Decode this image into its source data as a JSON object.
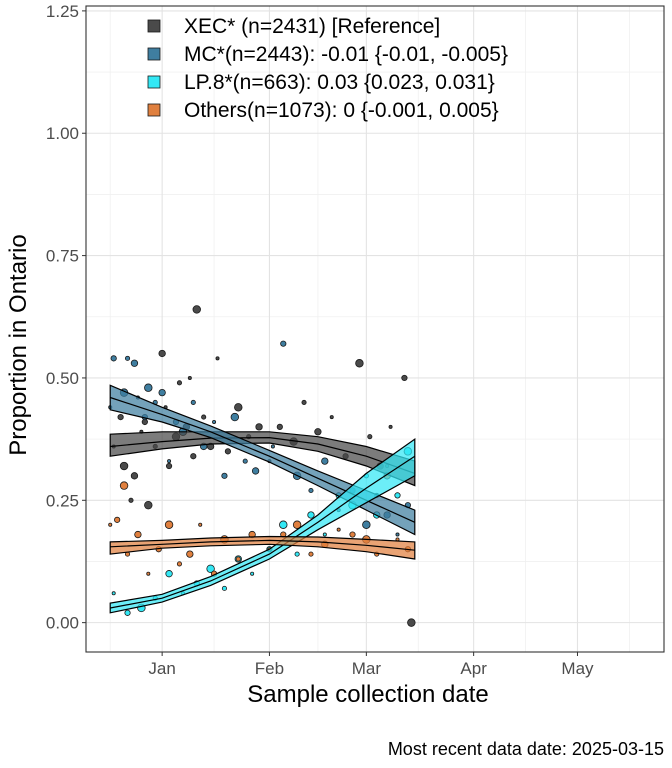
{
  "chart_data": {
    "type": "scatter",
    "title": "",
    "xlabel": "Sample collection date",
    "ylabel": "Proportion in Ontario",
    "caption": "Most recent data date: 2025-03-15",
    "xlim": [
      "2024-12-10",
      "2025-05-26"
    ],
    "ylim": [
      -0.06,
      1.26
    ],
    "x_ticks": [
      {
        "date": "2025-01-01",
        "label": "Jan"
      },
      {
        "date": "2025-02-01",
        "label": "Feb"
      },
      {
        "date": "2025-03-01",
        "label": "Mar"
      },
      {
        "date": "2025-04-01",
        "label": "Apr"
      },
      {
        "date": "2025-05-01",
        "label": "May"
      }
    ],
    "y_ticks": [
      {
        "value": 0,
        "label": "0.00"
      },
      {
        "value": 0.25,
        "label": "0.25"
      },
      {
        "value": 0.5,
        "label": "0.50"
      },
      {
        "value": 0.75,
        "label": "0.75"
      },
      {
        "value": 1.0,
        "label": "1.00"
      },
      {
        "value": 1.25,
        "label": "1.25"
      }
    ],
    "grid": true,
    "legend_position": "top-left inside",
    "series": [
      {
        "name": "XEC* (n=2431)  [Reference]",
        "color": "#4a4a4a",
        "fit_points": [
          {
            "x": "2024-12-17",
            "y": 0.36,
            "lo": 0.34,
            "hi": 0.385
          },
          {
            "x": "2025-01-01",
            "y": 0.37,
            "lo": 0.355,
            "hi": 0.39
          },
          {
            "x": "2025-01-15",
            "y": 0.377,
            "lo": 0.365,
            "hi": 0.39
          },
          {
            "x": "2025-02-01",
            "y": 0.378,
            "lo": 0.367,
            "hi": 0.39
          },
          {
            "x": "2025-02-15",
            "y": 0.365,
            "lo": 0.35,
            "hi": 0.38
          },
          {
            "x": "2025-03-01",
            "y": 0.34,
            "lo": 0.32,
            "hi": 0.36
          },
          {
            "x": "2025-03-15",
            "y": 0.305,
            "lo": 0.28,
            "hi": 0.33
          }
        ],
        "points": [
          {
            "x": "2024-12-18",
            "y": 0.36
          },
          {
            "x": "2024-12-20",
            "y": 0.42
          },
          {
            "x": "2024-12-21",
            "y": 0.32
          },
          {
            "x": "2024-12-23",
            "y": 0.25
          },
          {
            "x": "2024-12-24",
            "y": 0.3
          },
          {
            "x": "2024-12-26",
            "y": 0.39
          },
          {
            "x": "2024-12-27",
            "y": 0.41
          },
          {
            "x": "2024-12-28",
            "y": 0.24
          },
          {
            "x": "2024-12-30",
            "y": 0.36
          },
          {
            "x": "2025-01-01",
            "y": 0.55
          },
          {
            "x": "2025-01-02",
            "y": 0.44
          },
          {
            "x": "2025-01-03",
            "y": 0.32
          },
          {
            "x": "2025-01-05",
            "y": 0.38
          },
          {
            "x": "2025-01-06",
            "y": 0.49
          },
          {
            "x": "2025-01-08",
            "y": 0.4
          },
          {
            "x": "2025-01-09",
            "y": 0.5
          },
          {
            "x": "2025-01-10",
            "y": 0.34
          },
          {
            "x": "2025-01-11",
            "y": 0.64
          },
          {
            "x": "2025-01-13",
            "y": 0.42
          },
          {
            "x": "2025-01-15",
            "y": 0.36
          },
          {
            "x": "2025-01-17",
            "y": 0.54
          },
          {
            "x": "2025-01-20",
            "y": 0.35
          },
          {
            "x": "2025-01-23",
            "y": 0.44
          },
          {
            "x": "2025-01-26",
            "y": 0.38
          },
          {
            "x": "2025-01-29",
            "y": 0.4
          },
          {
            "x": "2025-02-01",
            "y": 0.33
          },
          {
            "x": "2025-02-04",
            "y": 0.4
          },
          {
            "x": "2025-02-08",
            "y": 0.37
          },
          {
            "x": "2025-02-11",
            "y": 0.45
          },
          {
            "x": "2025-02-15",
            "y": 0.39
          },
          {
            "x": "2025-02-19",
            "y": 0.42
          },
          {
            "x": "2025-02-23",
            "y": 0.34
          },
          {
            "x": "2025-02-27",
            "y": 0.53
          },
          {
            "x": "2025-03-02",
            "y": 0.38
          },
          {
            "x": "2025-03-05",
            "y": 0.32
          },
          {
            "x": "2025-03-08",
            "y": 0.4
          },
          {
            "x": "2025-03-12",
            "y": 0.5
          },
          {
            "x": "2025-03-14",
            "y": 0.0
          }
        ]
      },
      {
        "name": "MC*(n=2443): -0.01 {-0.01, -0.005}",
        "color": "#3f7ea0",
        "fit_points": [
          {
            "x": "2024-12-17",
            "y": 0.46,
            "lo": 0.435,
            "hi": 0.485
          },
          {
            "x": "2025-01-01",
            "y": 0.425,
            "lo": 0.41,
            "hi": 0.44
          },
          {
            "x": "2025-01-15",
            "y": 0.39,
            "lo": 0.378,
            "hi": 0.402
          },
          {
            "x": "2025-02-01",
            "y": 0.34,
            "lo": 0.328,
            "hi": 0.352
          },
          {
            "x": "2025-02-15",
            "y": 0.295,
            "lo": 0.28,
            "hi": 0.31
          },
          {
            "x": "2025-03-01",
            "y": 0.25,
            "lo": 0.23,
            "hi": 0.27
          },
          {
            "x": "2025-03-15",
            "y": 0.205,
            "lo": 0.18,
            "hi": 0.23
          }
        ],
        "points": [
          {
            "x": "2024-12-17",
            "y": 0.44
          },
          {
            "x": "2024-12-18",
            "y": 0.54
          },
          {
            "x": "2024-12-21",
            "y": 0.47
          },
          {
            "x": "2024-12-22",
            "y": 0.54
          },
          {
            "x": "2024-12-24",
            "y": 0.53
          },
          {
            "x": "2024-12-25",
            "y": 0.46
          },
          {
            "x": "2024-12-27",
            "y": 0.42
          },
          {
            "x": "2024-12-28",
            "y": 0.48
          },
          {
            "x": "2024-12-30",
            "y": 0.45
          },
          {
            "x": "2025-01-01",
            "y": 0.47
          },
          {
            "x": "2025-01-03",
            "y": 0.33
          },
          {
            "x": "2025-01-05",
            "y": 0.41
          },
          {
            "x": "2025-01-07",
            "y": 0.39
          },
          {
            "x": "2025-01-10",
            "y": 0.45
          },
          {
            "x": "2025-01-13",
            "y": 0.36
          },
          {
            "x": "2025-01-16",
            "y": 0.41
          },
          {
            "x": "2025-01-19",
            "y": 0.3
          },
          {
            "x": "2025-01-22",
            "y": 0.42
          },
          {
            "x": "2025-01-25",
            "y": 0.33
          },
          {
            "x": "2025-01-28",
            "y": 0.31
          },
          {
            "x": "2025-02-02",
            "y": 0.36
          },
          {
            "x": "2025-02-05",
            "y": 0.57
          },
          {
            "x": "2025-02-09",
            "y": 0.3
          },
          {
            "x": "2025-02-13",
            "y": 0.27
          },
          {
            "x": "2025-02-17",
            "y": 0.33
          },
          {
            "x": "2025-02-21",
            "y": 0.23
          },
          {
            "x": "2025-02-25",
            "y": 0.27
          },
          {
            "x": "2025-03-01",
            "y": 0.2
          },
          {
            "x": "2025-03-04",
            "y": 0.26
          },
          {
            "x": "2025-03-07",
            "y": 0.22
          },
          {
            "x": "2025-03-10",
            "y": 0.18
          },
          {
            "x": "2025-03-13",
            "y": 0.24
          }
        ]
      },
      {
        "name": "LP.8*(n=663): 0.03 {0.023, 0.031}",
        "color": "#33e8f5",
        "fit_points": [
          {
            "x": "2024-12-17",
            "y": 0.03,
            "lo": 0.02,
            "hi": 0.04
          },
          {
            "x": "2025-01-01",
            "y": 0.05,
            "lo": 0.042,
            "hi": 0.058
          },
          {
            "x": "2025-01-15",
            "y": 0.085,
            "lo": 0.076,
            "hi": 0.094
          },
          {
            "x": "2025-02-01",
            "y": 0.14,
            "lo": 0.13,
            "hi": 0.15
          },
          {
            "x": "2025-02-15",
            "y": 0.205,
            "lo": 0.19,
            "hi": 0.22
          },
          {
            "x": "2025-03-01",
            "y": 0.275,
            "lo": 0.245,
            "hi": 0.305
          },
          {
            "x": "2025-03-15",
            "y": 0.34,
            "lo": 0.3,
            "hi": 0.375
          }
        ],
        "points": [
          {
            "x": "2024-12-18",
            "y": 0.06
          },
          {
            "x": "2024-12-22",
            "y": 0.02
          },
          {
            "x": "2024-12-26",
            "y": 0.03
          },
          {
            "x": "2024-12-30",
            "y": 0.05
          },
          {
            "x": "2025-01-03",
            "y": 0.1
          },
          {
            "x": "2025-01-07",
            "y": 0.06
          },
          {
            "x": "2025-01-11",
            "y": 0.08
          },
          {
            "x": "2025-01-15",
            "y": 0.11
          },
          {
            "x": "2025-01-19",
            "y": 0.07
          },
          {
            "x": "2025-01-23",
            "y": 0.13
          },
          {
            "x": "2025-01-27",
            "y": 0.1
          },
          {
            "x": "2025-02-01",
            "y": 0.15
          },
          {
            "x": "2025-02-05",
            "y": 0.2
          },
          {
            "x": "2025-02-09",
            "y": 0.14
          },
          {
            "x": "2025-02-13",
            "y": 0.22
          },
          {
            "x": "2025-02-17",
            "y": 0.18
          },
          {
            "x": "2025-02-21",
            "y": 0.26
          },
          {
            "x": "2025-02-25",
            "y": 0.24
          },
          {
            "x": "2025-03-01",
            "y": 0.3
          },
          {
            "x": "2025-03-04",
            "y": 0.22
          },
          {
            "x": "2025-03-07",
            "y": 0.32
          },
          {
            "x": "2025-03-10",
            "y": 0.26
          },
          {
            "x": "2025-03-13",
            "y": 0.35
          }
        ]
      },
      {
        "name": "Others(n=1073): 0 {-0.001, 0.005}",
        "color": "#e0803f",
        "fit_points": [
          {
            "x": "2024-12-17",
            "y": 0.155,
            "lo": 0.14,
            "hi": 0.165
          },
          {
            "x": "2025-01-01",
            "y": 0.16,
            "lo": 0.152,
            "hi": 0.168
          },
          {
            "x": "2025-01-15",
            "y": 0.165,
            "lo": 0.157,
            "hi": 0.173
          },
          {
            "x": "2025-02-01",
            "y": 0.168,
            "lo": 0.16,
            "hi": 0.176
          },
          {
            "x": "2025-02-15",
            "y": 0.165,
            "lo": 0.155,
            "hi": 0.175
          },
          {
            "x": "2025-03-01",
            "y": 0.158,
            "lo": 0.145,
            "hi": 0.17
          },
          {
            "x": "2025-03-15",
            "y": 0.148,
            "lo": 0.13,
            "hi": 0.165
          }
        ],
        "points": [
          {
            "x": "2024-12-17",
            "y": 0.2
          },
          {
            "x": "2024-12-19",
            "y": 0.21
          },
          {
            "x": "2024-12-21",
            "y": 0.28
          },
          {
            "x": "2024-12-22",
            "y": 0.14
          },
          {
            "x": "2024-12-25",
            "y": 0.18
          },
          {
            "x": "2024-12-28",
            "y": 0.1
          },
          {
            "x": "2024-12-31",
            "y": 0.15
          },
          {
            "x": "2025-01-03",
            "y": 0.2
          },
          {
            "x": "2025-01-06",
            "y": 0.12
          },
          {
            "x": "2025-01-09",
            "y": 0.14
          },
          {
            "x": "2025-01-12",
            "y": 0.2
          },
          {
            "x": "2025-01-16",
            "y": 0.1
          },
          {
            "x": "2025-01-19",
            "y": 0.17
          },
          {
            "x": "2025-01-23",
            "y": 0.13
          },
          {
            "x": "2025-01-27",
            "y": 0.18
          },
          {
            "x": "2025-02-01",
            "y": 0.15
          },
          {
            "x": "2025-02-05",
            "y": 0.18
          },
          {
            "x": "2025-02-09",
            "y": 0.2
          },
          {
            "x": "2025-02-13",
            "y": 0.14
          },
          {
            "x": "2025-02-17",
            "y": 0.16
          },
          {
            "x": "2025-02-21",
            "y": 0.19
          },
          {
            "x": "2025-02-25",
            "y": 0.18
          },
          {
            "x": "2025-03-01",
            "y": 0.17
          },
          {
            "x": "2025-03-04",
            "y": 0.14
          },
          {
            "x": "2025-03-07",
            "y": 0.3
          },
          {
            "x": "2025-03-10",
            "y": 0.17
          },
          {
            "x": "2025-03-13",
            "y": 0.15
          }
        ]
      }
    ]
  }
}
